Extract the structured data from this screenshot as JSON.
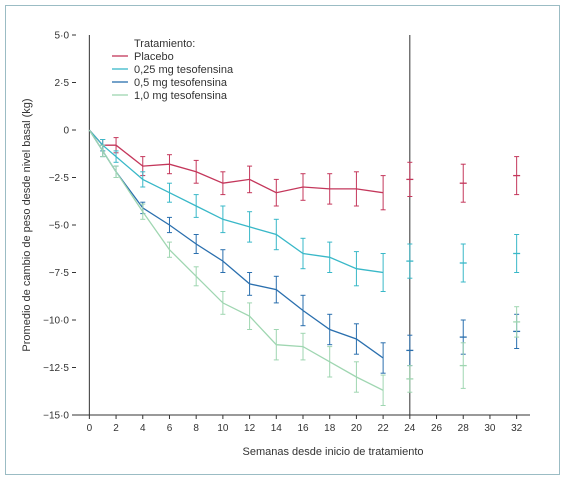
{
  "chart_data": {
    "type": "line",
    "xlabel": "Semanas desde inicio de tratamiento",
    "ylabel": "Promedio de cambio de peso desde nivel basal (kg)",
    "xlim": [
      -1,
      33
    ],
    "ylim": [
      -15,
      5
    ],
    "xticks": [
      0,
      2,
      4,
      6,
      8,
      10,
      12,
      14,
      16,
      18,
      20,
      22,
      24,
      26,
      28,
      30,
      32
    ],
    "yticks": [
      {
        "value": 5,
        "label": "5·0"
      },
      {
        "value": 2.5,
        "label": "2·5"
      },
      {
        "value": 0,
        "label": "0"
      },
      {
        "value": -2.5,
        "label": "−2·5"
      },
      {
        "value": -5,
        "label": "−5·0"
      },
      {
        "value": -7.5,
        "label": "−7·5"
      },
      {
        "value": -10,
        "label": "−10·0"
      },
      {
        "value": -12.5,
        "label": "−12·5"
      },
      {
        "value": -15,
        "label": "−15·0"
      }
    ],
    "grid": false,
    "separator_x": 24,
    "legend": {
      "title": "Tratamiento:",
      "placement": "top-left"
    },
    "series": [
      {
        "name": "Placebo",
        "color": "#c4375b",
        "x": [
          0,
          1,
          2,
          4,
          6,
          8,
          10,
          12,
          14,
          16,
          18,
          20,
          22
        ],
        "y": [
          0,
          -0.8,
          -0.8,
          -1.9,
          -1.8,
          -2.2,
          -2.8,
          -2.6,
          -3.3,
          -3.0,
          -3.1,
          -3.1,
          -3.3
        ],
        "err": [
          0,
          0.3,
          0.4,
          0.5,
          0.5,
          0.6,
          0.6,
          0.7,
          0.7,
          0.7,
          0.8,
          0.9,
          0.9
        ],
        "followup_x": [
          24,
          28,
          32
        ],
        "followup_y": [
          -2.6,
          -2.8,
          -2.4
        ],
        "followup_err": [
          0.9,
          1.0,
          1.0
        ]
      },
      {
        "name": "0,25 mg tesofensina",
        "color": "#39b8c8",
        "x": [
          0,
          1,
          2,
          4,
          6,
          8,
          10,
          12,
          14,
          16,
          18,
          20,
          22
        ],
        "y": [
          0,
          -0.8,
          -1.4,
          -2.6,
          -3.3,
          -4.0,
          -4.7,
          -5.1,
          -5.5,
          -6.5,
          -6.7,
          -7.3,
          -7.5
        ],
        "err": [
          0,
          0.3,
          0.3,
          0.4,
          0.5,
          0.6,
          0.7,
          0.8,
          0.8,
          0.8,
          0.8,
          0.9,
          1.0
        ],
        "followup_x": [
          24,
          28,
          32
        ],
        "followup_y": [
          -6.9,
          -7.0,
          -6.5
        ],
        "followup_err": [
          0.9,
          1.0,
          1.0
        ]
      },
      {
        "name": "0,5 mg tesofensina",
        "color": "#2a6fae",
        "x": [
          0,
          1,
          2,
          4,
          6,
          8,
          10,
          12,
          14,
          16,
          18,
          20,
          22
        ],
        "y": [
          0,
          -1.1,
          -2.2,
          -4.1,
          -5.0,
          -6.0,
          -6.9,
          -8.1,
          -8.4,
          -9.5,
          -10.5,
          -11.0,
          -12.0
        ],
        "err": [
          0,
          0.3,
          0.3,
          0.3,
          0.4,
          0.5,
          0.6,
          0.6,
          0.7,
          0.8,
          0.8,
          0.8,
          0.8
        ],
        "followup_x": [
          24,
          28,
          32
        ],
        "followup_y": [
          -11.6,
          -10.9,
          -10.6
        ],
        "followup_err": [
          0.8,
          0.9,
          0.9
        ]
      },
      {
        "name": "1,0 mg tesofensina",
        "color": "#9fd6b1",
        "x": [
          0,
          1,
          2,
          4,
          6,
          8,
          10,
          12,
          14,
          16,
          18,
          20,
          22
        ],
        "y": [
          0,
          -1.1,
          -2.2,
          -4.3,
          -6.3,
          -7.7,
          -9.1,
          -9.8,
          -11.3,
          -11.4,
          -12.2,
          -13.0,
          -13.7
        ],
        "err": [
          0,
          0.3,
          0.3,
          0.4,
          0.4,
          0.5,
          0.6,
          0.7,
          0.8,
          0.7,
          0.8,
          0.8,
          0.8
        ],
        "followup_x": [
          24,
          28,
          32
        ],
        "followup_y": [
          -13.1,
          -12.4,
          -10.1
        ],
        "followup_err": [
          0.7,
          1.2,
          0.8
        ]
      }
    ]
  },
  "colors": {
    "frame": "#9bbcc4",
    "axis": "#333333"
  }
}
